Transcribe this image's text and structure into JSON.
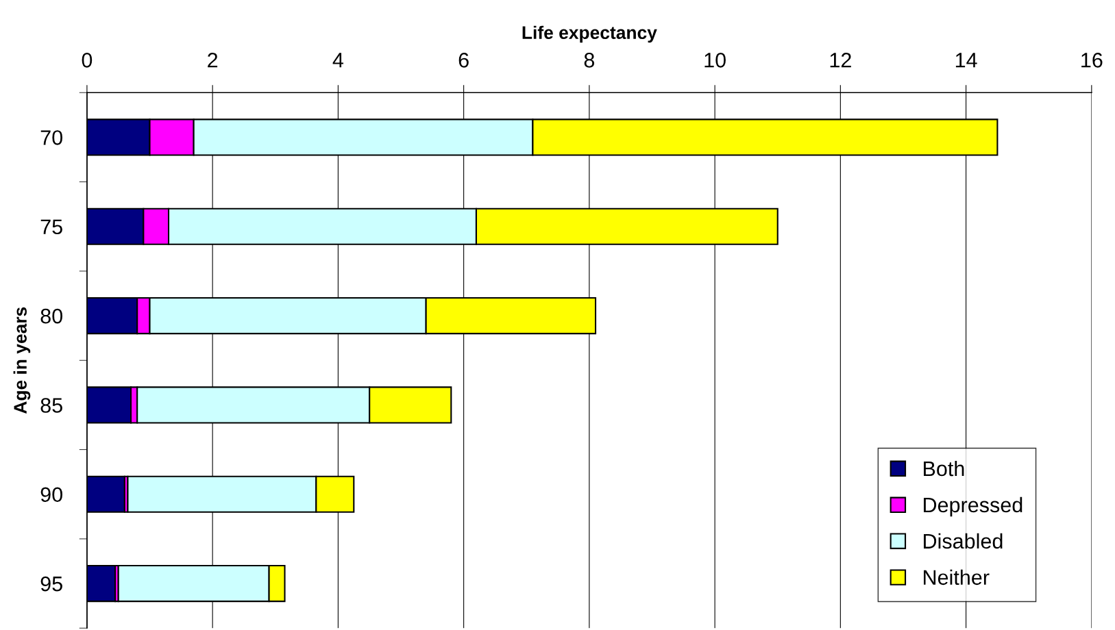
{
  "chart_data": {
    "type": "bar",
    "orientation": "horizontal",
    "stacked": true,
    "xlabel": "Life expectancy",
    "ylabel": "Age in years",
    "categories": [
      "70",
      "75",
      "80",
      "85",
      "90",
      "95"
    ],
    "series": [
      {
        "name": "Both",
        "color": "#000080",
        "values": [
          1.0,
          0.9,
          0.8,
          0.7,
          0.6,
          0.45
        ]
      },
      {
        "name": "Depressed",
        "color": "#ff00ff",
        "values": [
          0.7,
          0.4,
          0.2,
          0.1,
          0.05,
          0.05
        ]
      },
      {
        "name": "Disabled",
        "color": "#ccffff",
        "values": [
          5.4,
          4.9,
          4.4,
          3.7,
          3.0,
          2.4
        ]
      },
      {
        "name": "Neither",
        "color": "#ffff00",
        "values": [
          7.4,
          4.8,
          2.7,
          1.3,
          0.6,
          0.25
        ]
      }
    ],
    "xlim": [
      0,
      16
    ],
    "xticks": [
      0,
      2,
      4,
      6,
      8,
      10,
      12,
      14,
      16
    ],
    "grid": "x",
    "legend": "bottom right"
  }
}
